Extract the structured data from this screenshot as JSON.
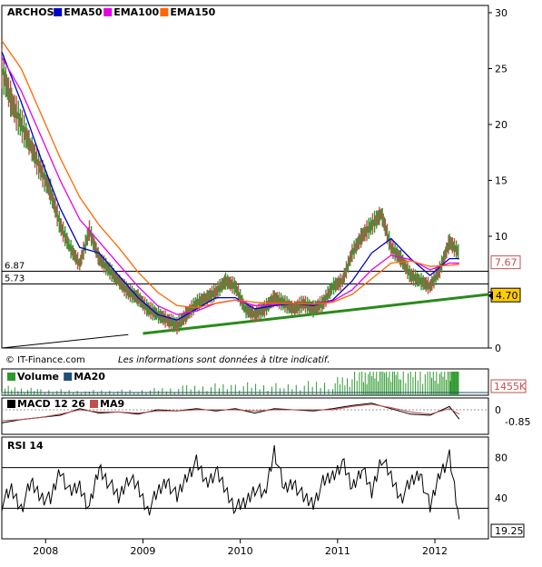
{
  "chart_data": [
    {
      "type": "line",
      "panel": "price",
      "instrument": "ARCHOS",
      "legend": [
        "ARCHOS",
        "EMA50",
        "EMA100",
        "EMA150"
      ],
      "colors": {
        "price_up": "#2e9a2e",
        "price_down": "#c0504d",
        "EMA50": "#0000cc",
        "EMA100": "#e600e6",
        "EMA150": "#ff6600",
        "trend": "#2a8a1a"
      },
      "y_ticks": [
        "30",
        "25",
        "20",
        "15",
        "10",
        "5",
        "0"
      ],
      "ylim": [
        0,
        30
      ],
      "x_ticks": [
        "2008",
        "2009",
        "2010",
        "2011",
        "2012"
      ],
      "xlim": [
        2007.6,
        2012.6
      ],
      "hlines": [
        {
          "label": "6.87",
          "value": 6.87
        },
        {
          "label": "5.73",
          "value": 5.73
        }
      ],
      "right_labels": [
        {
          "label": "7.67",
          "value": 7.67,
          "style": "box"
        },
        {
          "label": "4.70",
          "value": 4.7,
          "style": "highlight"
        }
      ],
      "trendlines": [
        {
          "points": [
            [
              2009.05,
              1.3
            ],
            [
              2012.6,
              4.8
            ]
          ]
        },
        {
          "points": [
            [
              2007.6,
              0.0
            ],
            [
              2008.9,
              1.2
            ]
          ]
        }
      ],
      "series": [
        {
          "name": "ARCHOS",
          "x": [
            2007.6,
            2007.7,
            2007.8,
            2007.9,
            2008.0,
            2008.1,
            2008.2,
            2008.3,
            2008.4,
            2008.5,
            2008.6,
            2008.7,
            2008.8,
            2008.9,
            2009.0,
            2009.1,
            2009.2,
            2009.3,
            2009.4,
            2009.5,
            2009.6,
            2009.7,
            2009.8,
            2009.9,
            2010.0,
            2010.1,
            2010.2,
            2010.3,
            2010.4,
            2010.5,
            2010.6,
            2010.7,
            2010.8,
            2010.9,
            2011.0,
            2011.1,
            2011.2,
            2011.3,
            2011.4,
            2011.5,
            2011.6,
            2011.7,
            2011.8,
            2011.9,
            2012.0,
            2012.1,
            2012.2,
            2012.3
          ],
          "values": [
            25,
            22,
            20,
            18,
            16,
            14,
            11,
            9,
            7.5,
            10.5,
            8,
            7,
            6,
            5,
            4.5,
            3.5,
            3,
            2.5,
            2,
            3,
            4,
            4.5,
            5,
            6,
            5.5,
            3.5,
            3,
            3.5,
            4.5,
            4,
            3.5,
            4,
            3.5,
            4,
            5.5,
            6,
            8.5,
            10,
            11,
            12,
            9,
            8,
            6.5,
            6,
            5.5,
            7,
            9.5,
            8.5
          ]
        },
        {
          "name": "EMA50",
          "x": [
            2007.6,
            2007.8,
            2008.0,
            2008.2,
            2008.4,
            2008.6,
            2008.8,
            2009.0,
            2009.2,
            2009.4,
            2009.6,
            2009.8,
            2010.0,
            2010.2,
            2010.4,
            2010.6,
            2010.8,
            2011.0,
            2011.2,
            2011.4,
            2011.6,
            2011.8,
            2012.0,
            2012.2,
            2012.3
          ],
          "values": [
            26.5,
            22,
            17,
            12.5,
            9,
            8.5,
            6.5,
            4.5,
            3,
            2.5,
            3.5,
            4.5,
            4.5,
            3.5,
            3.8,
            4,
            3.8,
            4.3,
            6,
            8.5,
            9.8,
            8,
            6.5,
            8,
            8
          ]
        },
        {
          "name": "EMA100",
          "x": [
            2007.6,
            2007.8,
            2008.0,
            2008.2,
            2008.4,
            2008.6,
            2008.8,
            2009.0,
            2009.2,
            2009.4,
            2009.6,
            2009.8,
            2010.0,
            2010.2,
            2010.4,
            2010.6,
            2010.8,
            2011.0,
            2011.2,
            2011.4,
            2011.6,
            2011.8,
            2012.0,
            2012.2,
            2012.3
          ],
          "values": [
            26,
            23,
            19,
            15,
            11.5,
            9.5,
            7.5,
            5.5,
            3.8,
            3,
            3.3,
            4,
            4.3,
            3.8,
            3.9,
            4,
            3.9,
            4.2,
            5.2,
            7,
            8.3,
            7.9,
            7,
            7.6,
            7.6
          ]
        },
        {
          "name": "EMA150",
          "x": [
            2007.6,
            2007.8,
            2008.0,
            2008.2,
            2008.4,
            2008.6,
            2008.8,
            2009.0,
            2009.2,
            2009.4,
            2009.6,
            2009.8,
            2010.0,
            2010.2,
            2010.4,
            2010.6,
            2010.8,
            2011.0,
            2011.2,
            2011.4,
            2011.6,
            2011.8,
            2012.0,
            2012.2,
            2012.3
          ],
          "values": [
            27.5,
            25,
            21,
            17,
            13.5,
            11,
            9,
            6.8,
            5,
            3.8,
            3.6,
            4,
            4.3,
            4.1,
            4,
            4,
            3.9,
            4.1,
            4.8,
            6.2,
            7.6,
            7.8,
            7.3,
            7.4,
            7.5
          ]
        }
      ]
    },
    {
      "type": "bar",
      "panel": "volume",
      "legend": [
        "Volume",
        "MA20"
      ],
      "colors": {
        "Volume": "#2e9a2e",
        "MA20": "#1f4e79"
      },
      "right_labels": [
        {
          "label": "1455K",
          "value": 1455
        }
      ],
      "series": [
        {
          "name": "Volume",
          "x": [
            2007.6,
            2008.0,
            2008.5,
            2009.0,
            2009.5,
            2010.0,
            2010.5,
            2011.0,
            2011.3,
            2011.5,
            2011.7,
            2012.0,
            2012.2,
            2012.3
          ],
          "values": [
            150,
            100,
            80,
            90,
            150,
            200,
            180,
            250,
            400,
            600,
            500,
            450,
            500,
            1455
          ]
        }
      ]
    },
    {
      "type": "line",
      "panel": "macd",
      "legend": [
        "MACD 12 26",
        "MA9"
      ],
      "colors": {
        "MACD 12 26": "#000000",
        "MA9": "#c0504d"
      },
      "y_ticks": [
        "0"
      ],
      "right_labels": [
        {
          "label": "-0.85",
          "value": -0.85
        }
      ],
      "series": [
        {
          "name": "MACD 12 26",
          "x": [
            2007.6,
            2007.8,
            2008.0,
            2008.2,
            2008.4,
            2008.6,
            2008.8,
            2009.0,
            2009.2,
            2009.4,
            2009.6,
            2009.8,
            2010.0,
            2010.2,
            2010.4,
            2010.6,
            2010.8,
            2011.0,
            2011.2,
            2011.4,
            2011.6,
            2011.8,
            2012.0,
            2012.2,
            2012.3
          ],
          "values": [
            -1.2,
            -0.9,
            -0.7,
            -0.5,
            0.1,
            -0.3,
            -0.2,
            -0.4,
            0.0,
            -0.1,
            0.1,
            -0.1,
            0.1,
            -0.3,
            0.1,
            0.0,
            -0.1,
            0.1,
            0.4,
            0.6,
            0.1,
            -0.4,
            -0.5,
            0.3,
            -0.85
          ]
        },
        {
          "name": "MA9",
          "x": [
            2007.6,
            2007.8,
            2008.0,
            2008.2,
            2008.4,
            2008.6,
            2008.8,
            2009.0,
            2009.2,
            2009.4,
            2009.6,
            2009.8,
            2010.0,
            2010.2,
            2010.4,
            2010.6,
            2010.8,
            2011.0,
            2011.2,
            2011.4,
            2011.6,
            2011.8,
            2012.0,
            2012.2,
            2012.3
          ],
          "values": [
            -1.0,
            -0.9,
            -0.7,
            -0.4,
            0.0,
            -0.2,
            -0.2,
            -0.3,
            -0.1,
            -0.1,
            0.0,
            0.0,
            0.0,
            -0.1,
            0.0,
            0.0,
            0.0,
            0.0,
            0.3,
            0.5,
            0.2,
            -0.2,
            -0.4,
            0.1,
            -0.4
          ]
        }
      ]
    },
    {
      "type": "line",
      "panel": "rsi",
      "legend": [
        "RSI 14"
      ],
      "colors": {
        "RSI 14": "#000000"
      },
      "y_ticks": [
        "80",
        "40"
      ],
      "ylim": [
        0,
        100
      ],
      "hlines": [
        {
          "value": 70
        },
        {
          "value": 30
        }
      ],
      "right_labels": [
        {
          "label": "19.25",
          "value": 19.25
        }
      ],
      "series": [
        {
          "name": "RSI 14",
          "x": [
            2007.6,
            2007.7,
            2007.8,
            2007.9,
            2008.0,
            2008.1,
            2008.2,
            2008.3,
            2008.4,
            2008.5,
            2008.6,
            2008.7,
            2008.8,
            2008.9,
            2009.0,
            2009.1,
            2009.2,
            2009.3,
            2009.4,
            2009.5,
            2009.6,
            2009.7,
            2009.8,
            2009.9,
            2010.0,
            2010.1,
            2010.2,
            2010.3,
            2010.4,
            2010.5,
            2010.6,
            2010.7,
            2010.8,
            2010.9,
            2011.0,
            2011.1,
            2011.2,
            2011.3,
            2011.4,
            2011.5,
            2011.6,
            2011.7,
            2011.8,
            2011.9,
            2012.0,
            2012.1,
            2012.2,
            2012.3
          ],
          "values": [
            35,
            48,
            30,
            55,
            42,
            38,
            68,
            45,
            52,
            30,
            70,
            55,
            40,
            60,
            50,
            28,
            45,
            58,
            40,
            62,
            75,
            55,
            66,
            48,
            30,
            35,
            50,
            42,
            88,
            48,
            56,
            40,
            35,
            55,
            62,
            75,
            50,
            70,
            45,
            80,
            60,
            40,
            55,
            65,
            30,
            65,
            80,
            19.25
          ]
        }
      ]
    }
  ],
  "footer": {
    "source": "© IT-Finance.com",
    "disclaimer": "Les informations sont données à titre indicatif."
  }
}
